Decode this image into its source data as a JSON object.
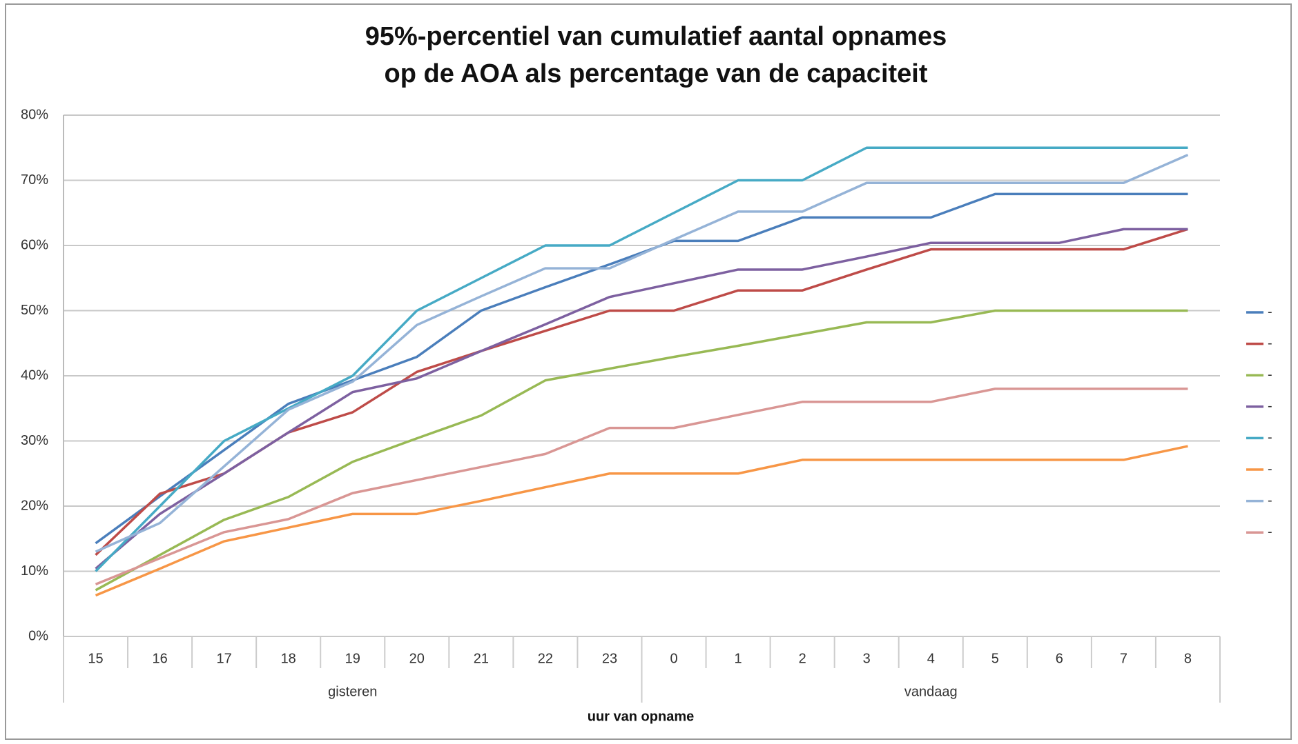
{
  "chart_data": {
    "type": "line",
    "title_lines": [
      "95%-percentiel van cumulatief aantal opnames",
      "op de AOA als percentage van de capaciteit"
    ],
    "x_label": "uur van opname",
    "categories": [
      "15",
      "16",
      "17",
      "18",
      "19",
      "20",
      "21",
      "22",
      "23",
      "0",
      "1",
      "2",
      "3",
      "4",
      "5",
      "6",
      "7",
      "8"
    ],
    "groups": [
      {
        "label": "gisteren",
        "count": 9
      },
      {
        "label": "vandaag",
        "count": 9
      }
    ],
    "ylim": [
      0,
      80
    ],
    "yticks": [
      {
        "value": 0,
        "label": "0%"
      },
      {
        "value": 10,
        "label": "10%"
      },
      {
        "value": 20,
        "label": "20%"
      },
      {
        "value": 30,
        "label": "30%"
      },
      {
        "value": 40,
        "label": "40%"
      },
      {
        "value": 50,
        "label": "50%"
      },
      {
        "value": 60,
        "label": "60%"
      },
      {
        "value": 70,
        "label": "70%"
      },
      {
        "value": 80,
        "label": "80%"
      }
    ],
    "grid": true,
    "legend": "right",
    "series": [
      {
        "name": "-",
        "color": "#4a7ebb",
        "values": [
          14.3,
          21.5,
          28.6,
          35.7,
          39.3,
          42.9,
          50,
          53.6,
          57.1,
          60.7,
          60.7,
          64.3,
          64.3,
          64.3,
          67.9,
          67.9,
          67.9,
          67.9
        ]
      },
      {
        "name": "-",
        "color": "#be4b48",
        "values": [
          12.5,
          21.9,
          25,
          31.3,
          34.4,
          40.6,
          43.8,
          46.9,
          50,
          50,
          53.1,
          53.1,
          56.3,
          59.4,
          59.4,
          59.4,
          59.4,
          62.5
        ]
      },
      {
        "name": "-",
        "color": "#98b954",
        "values": [
          7.1,
          12.5,
          17.9,
          21.4,
          26.8,
          30.4,
          33.9,
          39.3,
          41.1,
          42.9,
          44.6,
          46.4,
          48.2,
          48.2,
          50,
          50,
          50,
          50
        ]
      },
      {
        "name": "-",
        "color": "#7d60a0",
        "values": [
          10.4,
          18.8,
          25,
          31.3,
          37.5,
          39.6,
          43.8,
          47.9,
          52.1,
          54.2,
          56.3,
          56.3,
          58.3,
          60.4,
          60.4,
          60.4,
          62.5,
          62.5
        ]
      },
      {
        "name": "-",
        "color": "#46aac5",
        "values": [
          10,
          20,
          30,
          35,
          40,
          50,
          55,
          60,
          60,
          65,
          70,
          70,
          75,
          75,
          75,
          75,
          75,
          75
        ]
      },
      {
        "name": "-",
        "color": "#f79646",
        "values": [
          6.3,
          10.4,
          14.6,
          16.7,
          18.8,
          18.8,
          20.8,
          22.9,
          25,
          25,
          25,
          27.1,
          27.1,
          27.1,
          27.1,
          27.1,
          27.1,
          29.2
        ]
      },
      {
        "name": "-",
        "color": "#95b3d7",
        "values": [
          13,
          17.4,
          26.1,
          34.8,
          39.1,
          47.8,
          52.2,
          56.5,
          56.5,
          60.9,
          65.2,
          65.2,
          69.6,
          69.6,
          69.6,
          69.6,
          69.6,
          73.9
        ]
      },
      {
        "name": "-",
        "color": "#d99694",
        "values": [
          8,
          12,
          16,
          18,
          22,
          24,
          26,
          28,
          32,
          32,
          34,
          36,
          36,
          36,
          38,
          38,
          38,
          38
        ]
      }
    ]
  }
}
